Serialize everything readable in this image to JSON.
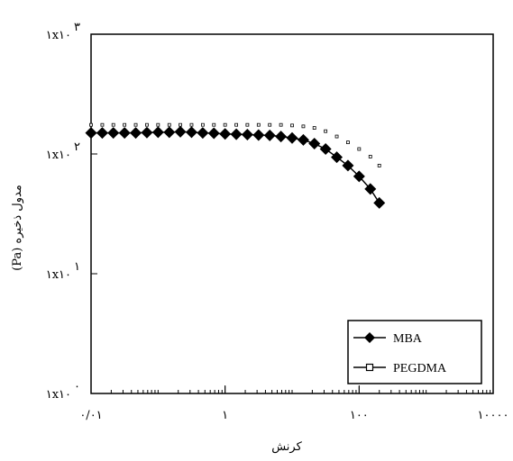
{
  "chart_data": {
    "type": "scatter",
    "xlabel": "کرنش",
    "ylabel": "(Pa) مدول ذخیره",
    "xscale": "log",
    "yscale": "log",
    "xlim": [
      0.01,
      10000
    ],
    "ylim": [
      1,
      1000
    ],
    "grid": false,
    "legend_position": "bottom-right",
    "x_ticks": [
      {
        "value": 0.01,
        "label": "۰/۰۱"
      },
      {
        "value": 1,
        "label": "۱"
      },
      {
        "value": 100,
        "label": "۱۰۰"
      },
      {
        "value": 10000,
        "label": "۱۰۰۰۰"
      }
    ],
    "y_ticks": [
      {
        "value": 1,
        "label": "۱x۱۰",
        "exp": "۰"
      },
      {
        "value": 10,
        "label": "۱x۱۰",
        "exp": "۱"
      },
      {
        "value": 100,
        "label": "۱x۱۰",
        "exp": "۲"
      },
      {
        "value": 1000,
        "label": "۱x۱۰",
        "exp": "۳"
      }
    ],
    "series": [
      {
        "name": "MBA",
        "marker": "diamond",
        "color": "#000000",
        "x": [
          0.01,
          0.0147,
          0.0215,
          0.0316,
          0.0464,
          0.0681,
          0.1,
          0.147,
          0.215,
          0.316,
          0.464,
          0.681,
          1,
          1.47,
          2.15,
          3.16,
          4.64,
          6.81,
          10,
          14.7,
          21.5,
          31.6,
          46.4,
          68.1,
          100,
          147,
          200
        ],
        "y": [
          150,
          150,
          150,
          150,
          150,
          151,
          152,
          152,
          153,
          152,
          150,
          149,
          147,
          146,
          145,
          144,
          143,
          140,
          136,
          131,
          122,
          110,
          94,
          80,
          65,
          51,
          39
        ]
      },
      {
        "name": "PEGDMA",
        "marker": "square-open",
        "color": "#000000",
        "x": [
          0.01,
          0.0147,
          0.0215,
          0.0316,
          0.0464,
          0.0681,
          0.1,
          0.147,
          0.215,
          0.316,
          0.464,
          0.681,
          1,
          1.47,
          2.15,
          3.16,
          4.64,
          6.81,
          10,
          14.7,
          21.5,
          31.6,
          46.4,
          68.1,
          100,
          147,
          200
        ],
        "y": [
          175,
          175,
          175,
          175,
          175,
          175,
          175,
          175,
          175,
          175,
          175,
          175,
          175,
          175,
          175,
          175,
          175,
          175,
          173,
          170,
          165,
          155,
          140,
          125,
          110,
          95,
          80
        ]
      }
    ]
  }
}
